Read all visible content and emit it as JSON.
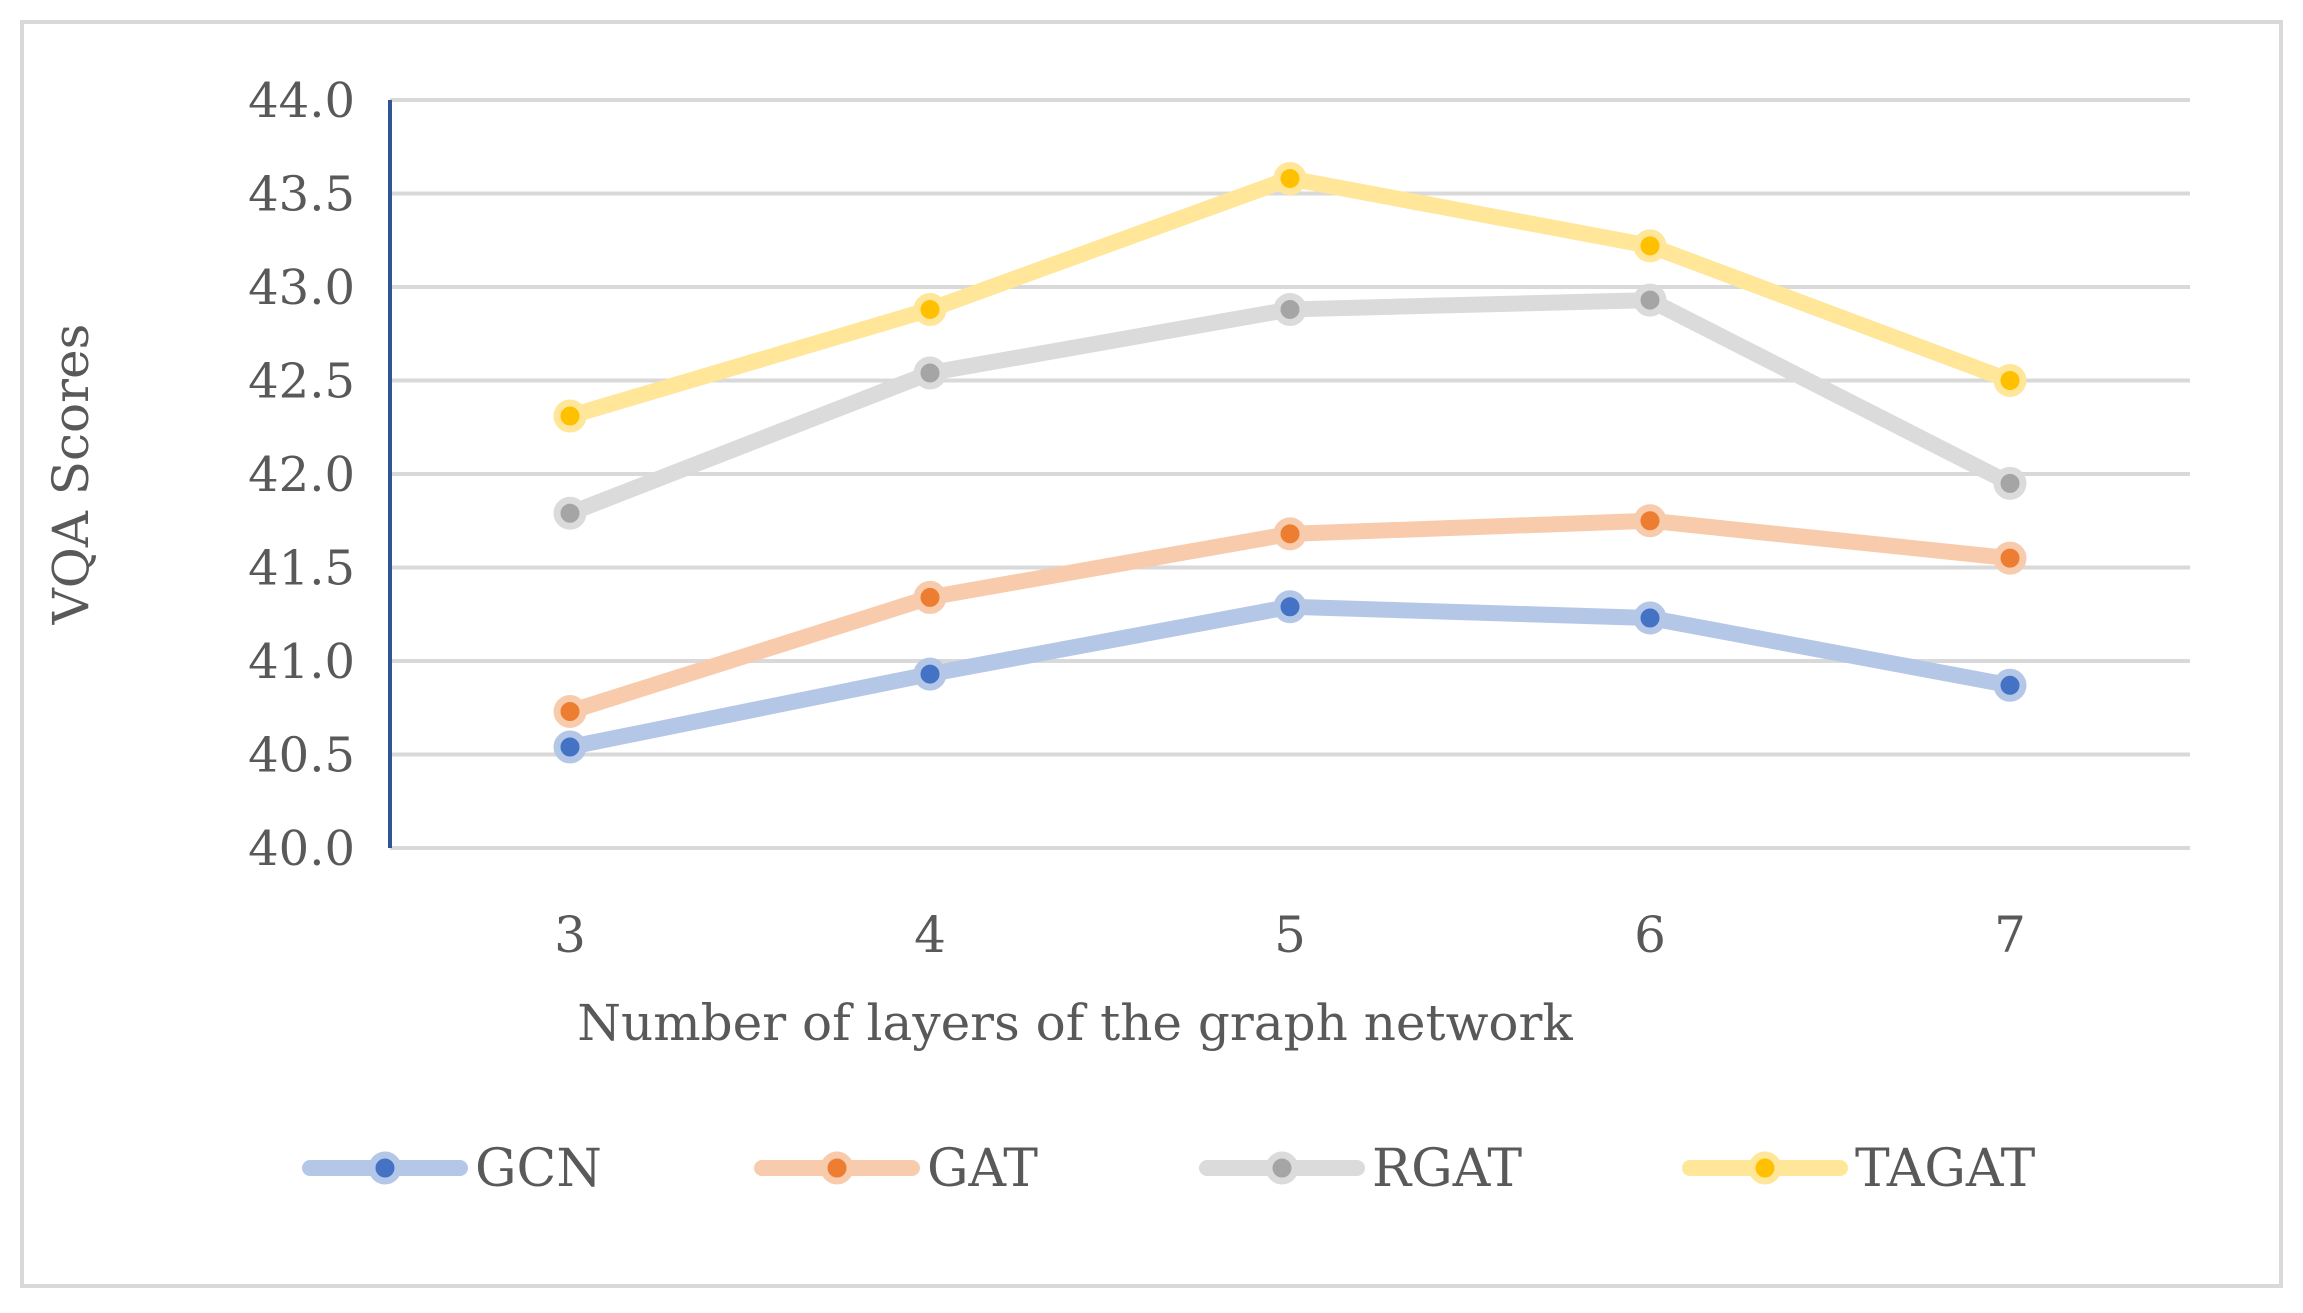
{
  "chart_data": {
    "type": "line",
    "title": "",
    "xlabel": "Number of layers of the graph network",
    "ylabel": "VQA Scores",
    "categories": [
      "3",
      "4",
      "5",
      "6",
      "7"
    ],
    "ylim": [
      40.0,
      44.0
    ],
    "yticks": [
      "40.0",
      "40.5",
      "41.0",
      "41.5",
      "42.0",
      "42.5",
      "43.0",
      "43.5",
      "44.0"
    ],
    "grid": true,
    "legend_position": "bottom",
    "series": [
      {
        "name": "GCN",
        "values": [
          40.54,
          40.93,
          41.29,
          41.23,
          40.87
        ],
        "line_color": "#b4c7e7",
        "marker_color": "#4472c4"
      },
      {
        "name": "GAT",
        "values": [
          40.73,
          41.34,
          41.68,
          41.75,
          41.55
        ],
        "line_color": "#f8cbad",
        "marker_color": "#ed7d31"
      },
      {
        "name": "RGAT",
        "values": [
          41.79,
          42.54,
          42.88,
          42.93,
          41.95
        ],
        "line_color": "#dbdbdb",
        "marker_color": "#a5a5a5"
      },
      {
        "name": "TAGAT",
        "values": [
          42.31,
          42.88,
          43.58,
          43.22,
          42.5
        ],
        "line_color": "#ffe699",
        "marker_color": "#ffc000"
      }
    ]
  }
}
